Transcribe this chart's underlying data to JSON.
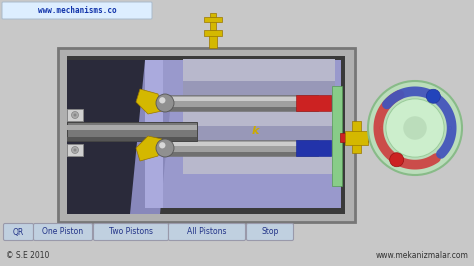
{
  "bg_color": "#c8c8c8",
  "title_text": "www.mechanisms.co",
  "title_bg": "#ddeeff",
  "gold_color": "#d4b800",
  "green_bar": "#88cc88",
  "blue_piston": "#2233aa",
  "red_piston": "#cc2222",
  "red_shaft": "#cc2222",
  "circle_bg": "#aaddaa",
  "blue_arc": "#5577cc",
  "red_arc": "#cc5555",
  "blue_dot": "#2244bb",
  "red_dot": "#cc2222",
  "footer_bg": "#c8c8c8",
  "button_bg": "#c0d0e0",
  "button_border": "#9999aa",
  "button_labels": [
    "QR",
    "One Piston",
    "Two Pistons",
    "All Pistons",
    "Stop"
  ],
  "copyright": "© S.E 2010",
  "website": "www.mekanizmalar.com"
}
